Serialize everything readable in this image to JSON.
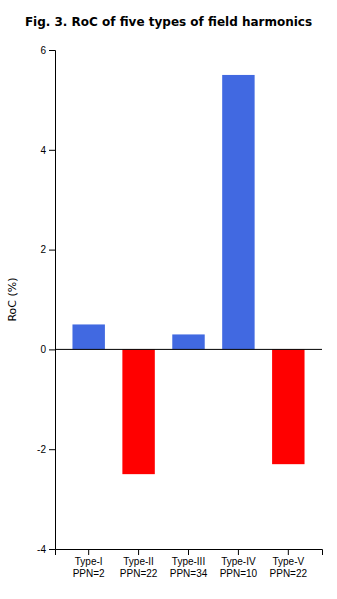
{
  "chart_data": {
    "type": "bar",
    "title": "Fig. 3. RoC of five types of field harmonics",
    "y_label": "RoC (%)",
    "categories": [
      "Type-I\nPPN=2",
      "Type-II\nPPN=22",
      "Type-III\nPPN=34",
      "Type-IV\nPPN=10",
      "Type-V\nPPN=22"
    ],
    "values": [
      0.5,
      -2.5,
      0.3,
      5.5,
      -2.3
    ],
    "colors": [
      "#4169E1",
      "#FF0000",
      "#4169E1",
      "#4169E1",
      "#FF0000"
    ],
    "ylim": [
      -4,
      6
    ],
    "yticks": [
      -4,
      -2,
      0,
      2,
      4,
      6
    ],
    "grid": false
  }
}
